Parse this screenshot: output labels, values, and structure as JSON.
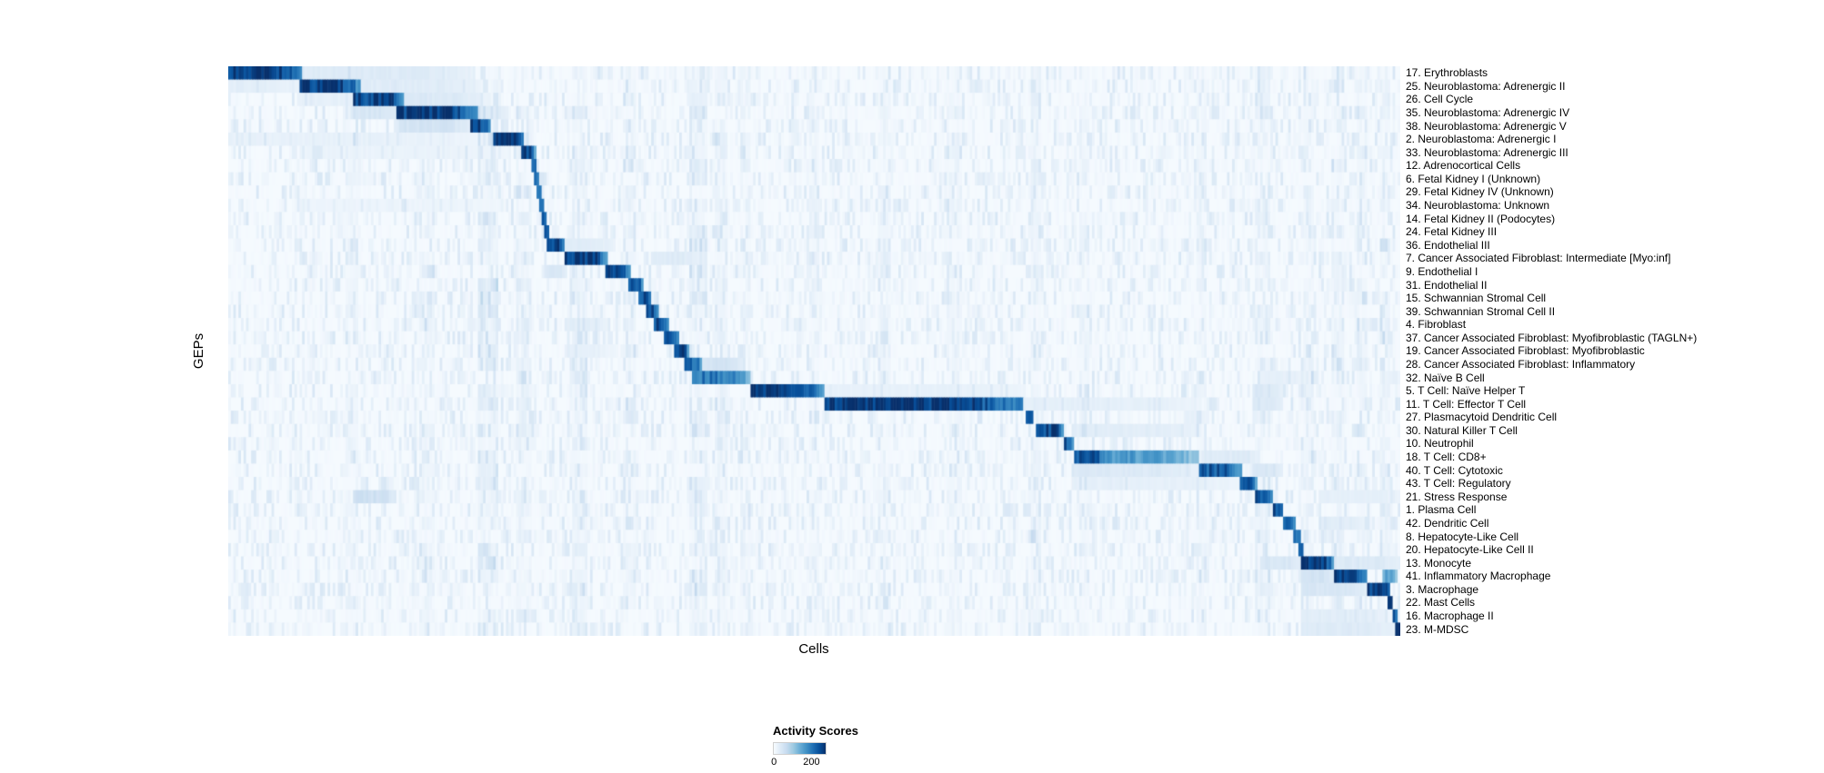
{
  "colors": {
    "page_background": "#ffffff",
    "text": "#000000",
    "colormap_stops": [
      "#f7fbff",
      "#deebf7",
      "#c6dbef",
      "#9ecae1",
      "#6baed6",
      "#4292c6",
      "#2171b5",
      "#08519c",
      "#08306b"
    ]
  },
  "chart_data": {
    "type": "heatmap",
    "title": "",
    "xlabel": "Cells",
    "ylabel": "GEPs",
    "colorbar": {
      "title": "Activity Scores",
      "min": 0,
      "max": 200,
      "tick_labels": [
        "0",
        "200"
      ]
    },
    "seed": 1337,
    "columns": 460,
    "noise_max": 30,
    "streaks": [
      {
        "x": 0.105,
        "w": 0.012,
        "v": 14
      },
      {
        "x": 0.17,
        "w": 0.012,
        "v": 14
      },
      {
        "x": 0.222,
        "w": 0.016,
        "v": 24
      },
      {
        "x": 0.252,
        "w": 0.012,
        "v": 22
      },
      {
        "x": 0.3,
        "w": 0.012,
        "v": 18
      },
      {
        "x": 0.342,
        "w": 0.01,
        "v": 18
      },
      {
        "x": 0.401,
        "w": 0.016,
        "v": 20
      },
      {
        "x": 0.421,
        "w": 0.012,
        "v": 16
      },
      {
        "x": 0.441,
        "w": 0.01,
        "v": 14
      },
      {
        "x": 0.5,
        "w": 0.01,
        "v": 12
      },
      {
        "x": 0.56,
        "w": 0.01,
        "v": 12
      },
      {
        "x": 0.62,
        "w": 0.012,
        "v": 12
      },
      {
        "x": 0.689,
        "w": 0.01,
        "v": 16
      },
      {
        "x": 0.73,
        "w": 0.01,
        "v": 12
      },
      {
        "x": 0.83,
        "w": 0.01,
        "v": 12
      },
      {
        "x": 0.883,
        "w": 0.012,
        "v": 20
      },
      {
        "x": 0.922,
        "w": 0.01,
        "v": 18
      },
      {
        "x": 0.947,
        "w": 0.01,
        "v": 16
      },
      {
        "x": 0.967,
        "w": 0.01,
        "v": 16
      },
      {
        "x": 0.987,
        "w": 0.008,
        "v": 16
      }
    ],
    "rows": [
      {
        "label": "17. Erythroblasts",
        "block": [
          0.0,
          0.062
        ],
        "value": 200,
        "extras": [
          [
            0.062,
            0.21,
            26
          ]
        ]
      },
      {
        "label": "25. Neuroblastoma: Adrenergic II",
        "block": [
          0.06,
          0.112
        ],
        "value": 200,
        "extras": [
          [
            0.0,
            0.06,
            20
          ],
          [
            0.112,
            0.215,
            24
          ]
        ]
      },
      {
        "label": "26. Cell Cycle",
        "block": [
          0.107,
          0.15
        ],
        "value": 195,
        "extras": [
          [
            0.06,
            0.107,
            18
          ],
          [
            0.15,
            0.215,
            28
          ]
        ]
      },
      {
        "label": "35. Neuroblastoma: Adrenergic IV",
        "block": [
          0.143,
          0.213
        ],
        "value": 200,
        "extras": [
          [
            0.107,
            0.143,
            34
          ],
          [
            0.213,
            0.24,
            24
          ]
        ]
      },
      {
        "label": "38. Neuroblastoma: Adrenergic V",
        "block": [
          0.206,
          0.225
        ],
        "value": 190,
        "extras": [
          [
            0.145,
            0.206,
            38
          ]
        ]
      },
      {
        "label": "2. Neuroblastoma: Adrenergic I",
        "block": [
          0.226,
          0.252
        ],
        "value": 200,
        "extras": [
          [
            0.0,
            0.215,
            16
          ]
        ]
      },
      {
        "label": "33. Neuroblastoma: Adrenergic III",
        "block": [
          0.25,
          0.262
        ],
        "value": 185,
        "extras": [
          [
            0.06,
            0.24,
            13
          ]
        ]
      },
      {
        "label": "12. Adrenocortical Cells",
        "block": [
          0.258,
          0.264
        ],
        "value": 175,
        "extras": []
      },
      {
        "label": "6. Fetal Kidney I (Unknown)",
        "block": [
          0.261,
          0.266
        ],
        "value": 170,
        "extras": []
      },
      {
        "label": "29. Fetal Kidney IV (Unknown)",
        "block": [
          0.263,
          0.268
        ],
        "value": 165,
        "extras": []
      },
      {
        "label": "34. Neuroblastoma: Unknown",
        "block": [
          0.265,
          0.27
        ],
        "value": 165,
        "extras": [
          [
            0.06,
            0.24,
            11
          ]
        ]
      },
      {
        "label": "14. Fetal Kidney II (Podocytes)",
        "block": [
          0.267,
          0.272
        ],
        "value": 170,
        "extras": []
      },
      {
        "label": "24. Fetal Kidney III",
        "block": [
          0.269,
          0.275
        ],
        "value": 175,
        "extras": []
      },
      {
        "label": "36. Endothelial III",
        "block": [
          0.272,
          0.288
        ],
        "value": 190,
        "extras": [
          [
            0.288,
            0.33,
            22
          ]
        ]
      },
      {
        "label": "7. Cancer Associated Fibroblast: Intermediate [Myo:inf]",
        "block": [
          0.286,
          0.323
        ],
        "value": 200,
        "extras": [
          [
            0.36,
            0.4,
            26
          ]
        ]
      },
      {
        "label": "9. Endothelial I",
        "block": [
          0.321,
          0.343
        ],
        "value": 200,
        "extras": [
          [
            0.272,
            0.29,
            32
          ]
        ]
      },
      {
        "label": "31. Endothelial II",
        "block": [
          0.341,
          0.354
        ],
        "value": 185,
        "extras": []
      },
      {
        "label": "15. Schwannian Stromal Cell",
        "block": [
          0.349,
          0.361
        ],
        "value": 180,
        "extras": []
      },
      {
        "label": "39. Schwannian Stromal Cell II",
        "block": [
          0.356,
          0.368
        ],
        "value": 175,
        "extras": []
      },
      {
        "label": "4. Fibroblast",
        "block": [
          0.362,
          0.377
        ],
        "value": 185,
        "extras": [
          [
            0.286,
            0.323,
            22
          ]
        ]
      },
      {
        "label": "37. Cancer Associated Fibroblast: Myofibroblastic (TAGLN+)",
        "block": [
          0.372,
          0.385
        ],
        "value": 185,
        "extras": []
      },
      {
        "label": "19. Cancer Associated Fibroblast: Myofibroblastic",
        "block": [
          0.38,
          0.393
        ],
        "value": 185,
        "extras": [
          [
            0.286,
            0.323,
            18
          ]
        ]
      },
      {
        "label": "28. Cancer Associated Fibroblast: Inflammatory",
        "block": [
          0.39,
          0.405
        ],
        "value": 160,
        "extras": [
          [
            0.405,
            0.44,
            38
          ]
        ]
      },
      {
        "label": "32. Naïve B Cell",
        "block": [
          0.396,
          0.446
        ],
        "value": 150,
        "extras": [
          [
            0.88,
            0.92,
            18
          ]
        ]
      },
      {
        "label": "5. T Cell: Naïve Helper T",
        "block": [
          0.446,
          0.508
        ],
        "value": 200,
        "extras": [
          [
            0.508,
            0.68,
            16
          ],
          [
            0.875,
            0.9,
            28
          ]
        ]
      },
      {
        "label": "11. T Cell: Effector T Cell",
        "block": [
          0.508,
          0.679
        ],
        "value": 200,
        "extras": [
          [
            0.679,
            0.83,
            18
          ],
          [
            0.875,
            0.9,
            28
          ]
        ]
      },
      {
        "label": "27. Plasmacytoid Dendritic Cell",
        "block": [
          0.681,
          0.688
        ],
        "value": 185,
        "extras": []
      },
      {
        "label": "30. Natural Killer T Cell",
        "block": [
          0.689,
          0.714
        ],
        "value": 190,
        "extras": [
          [
            0.72,
            0.83,
            22
          ]
        ]
      },
      {
        "label": "10. Neutrophil",
        "block": [
          0.714,
          0.721
        ],
        "value": 175,
        "extras": []
      },
      {
        "label": "18. T Cell: CD8+",
        "block": [
          0.721,
          0.828
        ],
        "value": 120,
        "extras": [
          [
            0.721,
            0.752,
            175
          ],
          [
            0.83,
            0.88,
            26
          ]
        ]
      },
      {
        "label": "40. T Cell: Cytotoxic",
        "block": [
          0.828,
          0.865
        ],
        "value": 175,
        "extras": [
          [
            0.72,
            0.828,
            28
          ],
          [
            0.875,
            0.9,
            32
          ]
        ]
      },
      {
        "label": "43. T Cell: Regulatory",
        "block": [
          0.863,
          0.878
        ],
        "value": 175,
        "extras": [
          [
            0.72,
            0.86,
            18
          ]
        ]
      },
      {
        "label": "21. Stress Response",
        "block": [
          0.877,
          0.891
        ],
        "value": 175,
        "extras": [
          [
            0.107,
            0.143,
            42
          ],
          [
            0.93,
            1.0,
            18
          ]
        ]
      },
      {
        "label": "1. Plasma Cell",
        "block": [
          0.891,
          0.901
        ],
        "value": 185,
        "extras": []
      },
      {
        "label": "42. Dendritic Cell",
        "block": [
          0.899,
          0.91
        ],
        "value": 175,
        "extras": [
          [
            0.93,
            0.97,
            22
          ]
        ]
      },
      {
        "label": "8. Hepatocyte-Like Cell",
        "block": [
          0.909,
          0.915
        ],
        "value": 170,
        "extras": []
      },
      {
        "label": "20. Hepatocyte-Like Cell II",
        "block": [
          0.912,
          0.918
        ],
        "value": 165,
        "extras": []
      },
      {
        "label": "13. Monocyte",
        "block": [
          0.916,
          0.943
        ],
        "value": 200,
        "extras": [
          [
            0.88,
            0.916,
            32
          ],
          [
            0.943,
            1.0,
            28
          ]
        ]
      },
      {
        "label": "41. Inflammatory Macrophage",
        "block": [
          0.943,
          0.972
        ],
        "value": 200,
        "extras": [
          [
            0.916,
            0.943,
            38
          ],
          [
            0.985,
            0.997,
            110
          ]
        ]
      },
      {
        "label": "3. Macrophage",
        "block": [
          0.972,
          0.992
        ],
        "value": 200,
        "extras": [
          [
            0.916,
            0.972,
            32
          ]
        ]
      },
      {
        "label": "22. Mast Cells",
        "block": [
          0.99,
          0.994
        ],
        "value": 185,
        "extras": []
      },
      {
        "label": "16. Macrophage II",
        "block": [
          0.993,
          0.997
        ],
        "value": 190,
        "extras": [
          [
            0.916,
            0.99,
            22
          ]
        ]
      },
      {
        "label": "23. M-MDSC",
        "block": [
          0.996,
          1.0
        ],
        "value": 200,
        "extras": [
          [
            0.916,
            0.996,
            26
          ]
        ]
      }
    ]
  }
}
